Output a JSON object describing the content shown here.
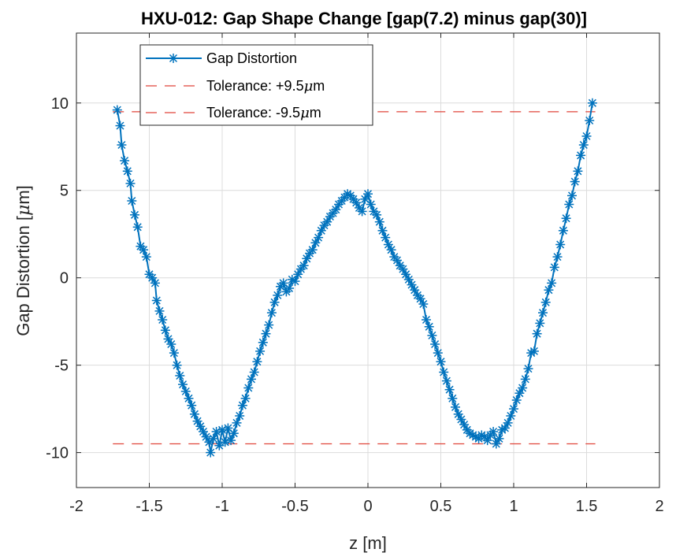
{
  "chart_data": {
    "type": "line",
    "title": "HXU-012: Gap Shape Change [gap(7.2) minus gap(30)]",
    "xlabel": "z [m]",
    "ylabel_prefix": "Gap Distortion [",
    "ylabel_mu": "μ",
    "ylabel_suffix": "m]",
    "xlim": [
      -2,
      2
    ],
    "ylim": [
      -12,
      14
    ],
    "xticks": [
      -2,
      -1.5,
      -1,
      -0.5,
      0,
      0.5,
      1,
      1.5,
      2
    ],
    "yticks": [
      -10,
      -5,
      0,
      5,
      10
    ],
    "grid": true,
    "legend_position": "top-left",
    "series": [
      {
        "name": "Gap Distortion",
        "color": "#0072bd",
        "marker": "asterisk",
        "points": [
          [
            -1.72,
            9.6
          ],
          [
            -1.7,
            8.7
          ],
          [
            -1.69,
            7.6
          ],
          [
            -1.67,
            6.7
          ],
          [
            -1.65,
            6.1
          ],
          [
            -1.63,
            5.4
          ],
          [
            -1.62,
            4.4
          ],
          [
            -1.6,
            3.6
          ],
          [
            -1.58,
            2.9
          ],
          [
            -1.56,
            1.8
          ],
          [
            -1.54,
            1.6
          ],
          [
            -1.52,
            1.2
          ],
          [
            -1.5,
            0.2
          ],
          [
            -1.48,
            0.0
          ],
          [
            -1.46,
            -0.3
          ],
          [
            -1.45,
            -1.3
          ],
          [
            -1.43,
            -1.9
          ],
          [
            -1.41,
            -2.4
          ],
          [
            -1.39,
            -3.0
          ],
          [
            -1.37,
            -3.5
          ],
          [
            -1.35,
            -3.8
          ],
          [
            -1.33,
            -4.3
          ],
          [
            -1.31,
            -5.0
          ],
          [
            -1.29,
            -5.6
          ],
          [
            -1.27,
            -6.1
          ],
          [
            -1.25,
            -6.5
          ],
          [
            -1.23,
            -6.9
          ],
          [
            -1.21,
            -7.3
          ],
          [
            -1.19,
            -7.8
          ],
          [
            -1.17,
            -8.2
          ],
          [
            -1.15,
            -8.5
          ],
          [
            -1.13,
            -8.8
          ],
          [
            -1.11,
            -9.1
          ],
          [
            -1.09,
            -9.4
          ],
          [
            -1.08,
            -10.0
          ],
          [
            -1.06,
            -9.2
          ],
          [
            -1.04,
            -8.8
          ],
          [
            -1.02,
            -9.6
          ],
          [
            -1.0,
            -8.7
          ],
          [
            -0.98,
            -9.4
          ],
          [
            -0.96,
            -8.6
          ],
          [
            -0.94,
            -9.3
          ],
          [
            -0.92,
            -8.9
          ],
          [
            -0.9,
            -8.3
          ],
          [
            -0.88,
            -7.9
          ],
          [
            -0.86,
            -7.3
          ],
          [
            -0.84,
            -6.9
          ],
          [
            -0.82,
            -6.3
          ],
          [
            -0.8,
            -5.8
          ],
          [
            -0.78,
            -5.4
          ],
          [
            -0.76,
            -4.8
          ],
          [
            -0.74,
            -4.2
          ],
          [
            -0.72,
            -3.7
          ],
          [
            -0.7,
            -3.2
          ],
          [
            -0.68,
            -2.7
          ],
          [
            -0.66,
            -2.0
          ],
          [
            -0.64,
            -1.4
          ],
          [
            -0.62,
            -1.0
          ],
          [
            -0.6,
            -0.5
          ],
          [
            -0.58,
            -0.3
          ],
          [
            -0.56,
            -0.8
          ],
          [
            -0.54,
            -0.6
          ],
          [
            -0.52,
            -0.1
          ],
          [
            -0.5,
            -0.2
          ],
          [
            -0.48,
            0.2
          ],
          [
            -0.46,
            0.5
          ],
          [
            -0.44,
            0.7
          ],
          [
            -0.42,
            1.1
          ],
          [
            -0.4,
            1.4
          ],
          [
            -0.38,
            1.6
          ],
          [
            -0.36,
            2.0
          ],
          [
            -0.34,
            2.3
          ],
          [
            -0.32,
            2.7
          ],
          [
            -0.3,
            3.0
          ],
          [
            -0.28,
            3.2
          ],
          [
            -0.26,
            3.5
          ],
          [
            -0.24,
            3.7
          ],
          [
            -0.22,
            3.9
          ],
          [
            -0.2,
            4.2
          ],
          [
            -0.18,
            4.4
          ],
          [
            -0.16,
            4.6
          ],
          [
            -0.14,
            4.8
          ],
          [
            -0.12,
            4.7
          ],
          [
            -0.1,
            4.5
          ],
          [
            -0.08,
            4.3
          ],
          [
            -0.06,
            4.0
          ],
          [
            -0.04,
            3.8
          ],
          [
            -0.02,
            4.5
          ],
          [
            0.0,
            4.8
          ],
          [
            0.02,
            4.2
          ],
          [
            0.04,
            3.8
          ],
          [
            0.06,
            3.6
          ],
          [
            0.08,
            3.2
          ],
          [
            0.1,
            2.7
          ],
          [
            0.12,
            2.3
          ],
          [
            0.14,
            1.9
          ],
          [
            0.16,
            1.6
          ],
          [
            0.18,
            1.2
          ],
          [
            0.2,
            1.0
          ],
          [
            0.22,
            0.7
          ],
          [
            0.24,
            0.5
          ],
          [
            0.26,
            0.2
          ],
          [
            0.28,
            -0.1
          ],
          [
            0.3,
            -0.4
          ],
          [
            0.32,
            -0.7
          ],
          [
            0.34,
            -1.0
          ],
          [
            0.36,
            -1.2
          ],
          [
            0.38,
            -1.5
          ],
          [
            0.4,
            -2.4
          ],
          [
            0.42,
            -2.8
          ],
          [
            0.44,
            -3.3
          ],
          [
            0.46,
            -3.8
          ],
          [
            0.48,
            -4.3
          ],
          [
            0.5,
            -4.8
          ],
          [
            0.52,
            -5.4
          ],
          [
            0.54,
            -5.9
          ],
          [
            0.56,
            -6.4
          ],
          [
            0.58,
            -6.9
          ],
          [
            0.6,
            -7.4
          ],
          [
            0.62,
            -7.8
          ],
          [
            0.64,
            -8.1
          ],
          [
            0.66,
            -8.4
          ],
          [
            0.68,
            -8.7
          ],
          [
            0.7,
            -8.9
          ],
          [
            0.72,
            -9.0
          ],
          [
            0.74,
            -9.1
          ],
          [
            0.76,
            -9.2
          ],
          [
            0.78,
            -9.0
          ],
          [
            0.8,
            -9.1
          ],
          [
            0.82,
            -9.3
          ],
          [
            0.84,
            -9.0
          ],
          [
            0.86,
            -8.8
          ],
          [
            0.88,
            -9.5
          ],
          [
            0.9,
            -9.2
          ],
          [
            0.92,
            -8.7
          ],
          [
            0.94,
            -8.6
          ],
          [
            0.96,
            -8.3
          ],
          [
            0.98,
            -7.9
          ],
          [
            1.0,
            -7.5
          ],
          [
            1.02,
            -7.0
          ],
          [
            1.04,
            -6.6
          ],
          [
            1.06,
            -6.3
          ],
          [
            1.08,
            -5.8
          ],
          [
            1.1,
            -5.2
          ],
          [
            1.12,
            -4.3
          ],
          [
            1.14,
            -4.2
          ],
          [
            1.16,
            -3.2
          ],
          [
            1.18,
            -2.6
          ],
          [
            1.2,
            -2.0
          ],
          [
            1.22,
            -1.4
          ],
          [
            1.24,
            -0.7
          ],
          [
            1.26,
            -0.3
          ],
          [
            1.28,
            0.6
          ],
          [
            1.3,
            1.2
          ],
          [
            1.32,
            1.9
          ],
          [
            1.34,
            2.7
          ],
          [
            1.36,
            3.4
          ],
          [
            1.38,
            4.2
          ],
          [
            1.4,
            4.7
          ],
          [
            1.42,
            5.5
          ],
          [
            1.44,
            6.1
          ],
          [
            1.46,
            7.0
          ],
          [
            1.48,
            7.6
          ],
          [
            1.5,
            8.1
          ],
          [
            1.52,
            9.0
          ],
          [
            1.54,
            10.0
          ]
        ]
      },
      {
        "name_prefix": "Tolerance: +9.5",
        "name_mu": "μ",
        "name_suffix": "m",
        "color": "#e0443a",
        "style": "dashed",
        "y": 9.5,
        "x": [
          -1.75,
          1.56
        ]
      },
      {
        "name_prefix": "Tolerance: -9.5",
        "name_mu": "μ",
        "name_suffix": "m",
        "color": "#e0443a",
        "style": "dashed",
        "y": -9.5,
        "x": [
          -1.75,
          1.56
        ]
      }
    ]
  }
}
